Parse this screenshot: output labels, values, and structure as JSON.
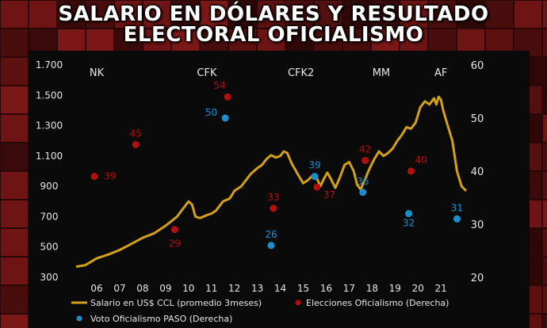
{
  "title": {
    "line1": "SALARIO EN DÓLARES Y RESULTADO",
    "line2": "ELECTORAL OFICIALISMO"
  },
  "colors": {
    "salary_line": "#d4a017",
    "elecciones": "#b01010",
    "paso": "#1a8fd0",
    "axis_text": "#e6e6e6"
  },
  "chart_data": {
    "type": "line",
    "title": "SALARIO EN DÓLARES Y RESULTADO ELECTORAL OFICIALISMO",
    "x_ticks": [
      "06",
      "07",
      "08",
      "09",
      "10",
      "11",
      "12",
      "13",
      "14",
      "15",
      "16",
      "17",
      "18",
      "19",
      "20",
      "21"
    ],
    "xlim": [
      2005.1,
      2022.1
    ],
    "left_axis": {
      "ylim": [
        300,
        1700
      ],
      "ticks": [
        "300",
        "500",
        "700",
        "900",
        "1.100",
        "1.300",
        "1.500",
        "1.700"
      ]
    },
    "right_axis": {
      "ylim": [
        20,
        60
      ],
      "ticks": [
        "20",
        "30",
        "40",
        "50",
        "60"
      ]
    },
    "periods": [
      {
        "label": "NK",
        "x": 2006.0
      },
      {
        "label": "CFK",
        "x": 2010.8
      },
      {
        "label": "CFK2",
        "x": 2014.9
      },
      {
        "label": "MM",
        "x": 2018.4
      },
      {
        "label": "AF",
        "x": 2021.0
      }
    ],
    "series": [
      {
        "name": "Salario en US$ CCL (promedio 3meses)",
        "axis": "left",
        "points": [
          [
            2005.1,
            370
          ],
          [
            2005.5,
            380
          ],
          [
            2006.0,
            425
          ],
          [
            2006.5,
            450
          ],
          [
            2007.0,
            480
          ],
          [
            2007.5,
            520
          ],
          [
            2008.0,
            560
          ],
          [
            2008.5,
            590
          ],
          [
            2009.0,
            640
          ],
          [
            2009.5,
            700
          ],
          [
            2009.8,
            760
          ],
          [
            2010.0,
            800
          ],
          [
            2010.15,
            780
          ],
          [
            2010.3,
            700
          ],
          [
            2010.5,
            690
          ],
          [
            2010.8,
            710
          ],
          [
            2011.0,
            720
          ],
          [
            2011.2,
            740
          ],
          [
            2011.5,
            800
          ],
          [
            2011.8,
            820
          ],
          [
            2012.0,
            870
          ],
          [
            2012.3,
            900
          ],
          [
            2012.5,
            940
          ],
          [
            2012.7,
            980
          ],
          [
            2013.0,
            1020
          ],
          [
            2013.2,
            1040
          ],
          [
            2013.4,
            1080
          ],
          [
            2013.6,
            1105
          ],
          [
            2013.8,
            1090
          ],
          [
            2014.0,
            1100
          ],
          [
            2014.15,
            1130
          ],
          [
            2014.3,
            1120
          ],
          [
            2014.5,
            1050
          ],
          [
            2014.8,
            970
          ],
          [
            2015.0,
            920
          ],
          [
            2015.2,
            940
          ],
          [
            2015.4,
            970
          ],
          [
            2015.6,
            950
          ],
          [
            2015.75,
            900
          ],
          [
            2015.9,
            950
          ],
          [
            2016.05,
            990
          ],
          [
            2016.2,
            950
          ],
          [
            2016.4,
            890
          ],
          [
            2016.6,
            960
          ],
          [
            2016.8,
            1040
          ],
          [
            2017.0,
            1060
          ],
          [
            2017.2,
            1000
          ],
          [
            2017.35,
            910
          ],
          [
            2017.5,
            880
          ],
          [
            2017.7,
            950
          ],
          [
            2017.9,
            1020
          ],
          [
            2018.1,
            1080
          ],
          [
            2018.3,
            1130
          ],
          [
            2018.5,
            1100
          ],
          [
            2018.7,
            1120
          ],
          [
            2018.9,
            1150
          ],
          [
            2019.1,
            1200
          ],
          [
            2019.3,
            1240
          ],
          [
            2019.5,
            1290
          ],
          [
            2019.7,
            1280
          ],
          [
            2019.9,
            1320
          ],
          [
            2020.1,
            1420
          ],
          [
            2020.3,
            1460
          ],
          [
            2020.5,
            1440
          ],
          [
            2020.7,
            1480
          ],
          [
            2020.8,
            1440
          ],
          [
            2020.9,
            1490
          ],
          [
            2021.0,
            1470
          ],
          [
            2021.1,
            1400
          ],
          [
            2021.3,
            1300
          ],
          [
            2021.5,
            1200
          ],
          [
            2021.7,
            1000
          ],
          [
            2021.9,
            900
          ],
          [
            2022.1,
            870
          ]
        ]
      },
      {
        "name": "Elecciones Oficialismo (Derecha)",
        "axis": "right",
        "points": [
          {
            "x": 2005.9,
            "y": 39,
            "label": "39"
          },
          {
            "x": 2007.7,
            "y": 45,
            "label": "45"
          },
          {
            "x": 2009.4,
            "y": 29,
            "label": "29"
          },
          {
            "x": 2011.7,
            "y": 54,
            "label": "54"
          },
          {
            "x": 2013.7,
            "y": 33,
            "label": "33"
          },
          {
            "x": 2015.6,
            "y": 37,
            "label": "37"
          },
          {
            "x": 2017.7,
            "y": 42,
            "label": "42"
          },
          {
            "x": 2019.7,
            "y": 40,
            "label": "40"
          }
        ]
      },
      {
        "name": "Voto Oficialismo PASO (Derecha)",
        "axis": "right",
        "points": [
          {
            "x": 2011.6,
            "y": 50,
            "label": "50"
          },
          {
            "x": 2013.6,
            "y": 26,
            "label": "26"
          },
          {
            "x": 2015.5,
            "y": 39,
            "label": "39"
          },
          {
            "x": 2017.6,
            "y": 36,
            "label": "36"
          },
          {
            "x": 2019.6,
            "y": 32,
            "label": "32"
          },
          {
            "x": 2021.7,
            "y": 31,
            "label": "31"
          }
        ]
      }
    ],
    "legend": [
      {
        "label": "Salario en US$ CCL (promedio 3meses)",
        "type": "line"
      },
      {
        "label": "Elecciones Oficialismo (Derecha)",
        "type": "dot-red"
      },
      {
        "label": "Voto Oficialismo PASO (Derecha)",
        "type": "dot-blue"
      }
    ]
  }
}
